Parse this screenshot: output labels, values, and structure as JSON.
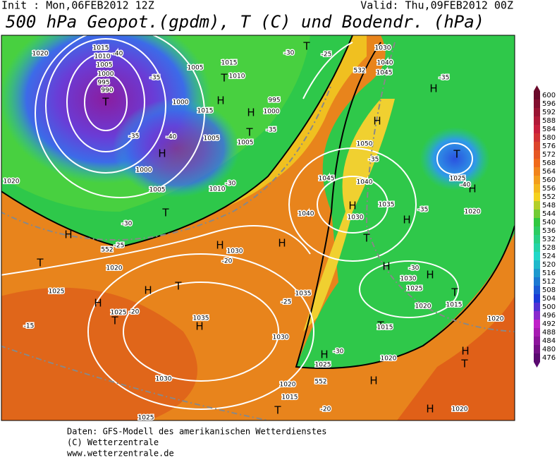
{
  "header": {
    "init": "Init : Mon,06FEB2012 12Z",
    "valid": "Valid: Thu,09FEB2012 00Z",
    "title": "500 hPa Geopot.(gpdm), T (C) und Bodendr. (hPa)"
  },
  "colorbar": {
    "labels": [
      600,
      596,
      592,
      588,
      584,
      580,
      576,
      572,
      568,
      564,
      560,
      556,
      552,
      548,
      544,
      540,
      536,
      532,
      528,
      524,
      520,
      516,
      512,
      508,
      504,
      500,
      496,
      492,
      488,
      484,
      480,
      476
    ]
  },
  "map": {
    "labels": [
      "T",
      "H",
      "T",
      "H",
      "T",
      "H",
      "T",
      "H",
      "T",
      "H",
      "H",
      "H",
      "H",
      "T",
      "H",
      "T",
      "T",
      "H",
      "H",
      "T",
      "H",
      "H",
      "H",
      "T",
      "H",
      "H",
      "T",
      "T",
      "H",
      "H",
      "H",
      "H",
      "T",
      "T",
      "1020",
      "1015",
      "1010",
      "1005",
      "1000",
      "995",
      "990",
      "-40",
      "-35",
      "1005",
      "1015",
      "1010",
      "1000",
      "1015",
      "995",
      "1000",
      "-40",
      "1005",
      "1005",
      "-35",
      "-35",
      "1000",
      "1005",
      "1010",
      "-30",
      "-25",
      "-30",
      "1020",
      "-20",
      "1030",
      "1025",
      "1025",
      "-20",
      "-15",
      "1035",
      "1030",
      "1025",
      "-25",
      "1035",
      "1030",
      "1020",
      "1015",
      "-20",
      "552",
      "1025",
      "-30",
      "1020",
      "1015",
      "1025",
      "1020",
      "1015",
      "1020",
      "1020",
      "1030",
      "-30",
      "1040",
      "1035",
      "1040",
      "1030",
      "1045",
      "1050",
      "-35",
      "-35",
      "1025",
      "1020",
      "-40",
      "-35",
      "1030",
      "1040",
      "1045",
      "532",
      "1020",
      "552",
      "-30",
      "-25"
    ]
  },
  "footer": {
    "lines": [
      "Daten: GFS-Modell des amerikanischen Wetterdienstes",
      "(C) Wetterzentrale",
      "www.wetterzentrale.de"
    ]
  }
}
